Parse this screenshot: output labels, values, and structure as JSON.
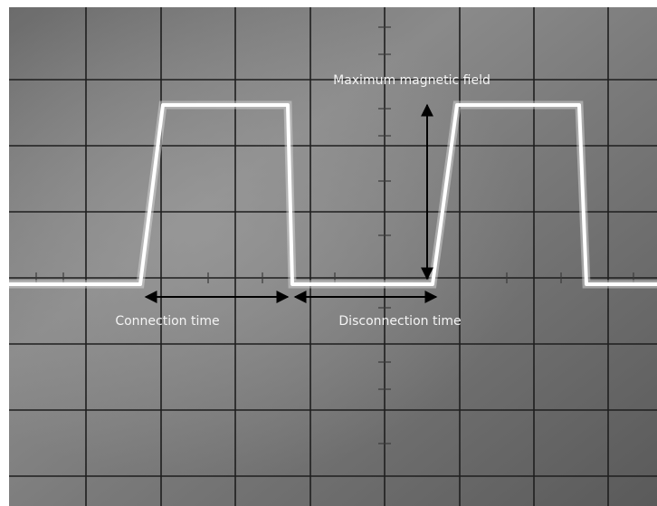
{
  "annotations": {
    "max_field": "Maximum magnetic field",
    "connection": "Connection time",
    "disconnection": "Disconnection time"
  }
}
